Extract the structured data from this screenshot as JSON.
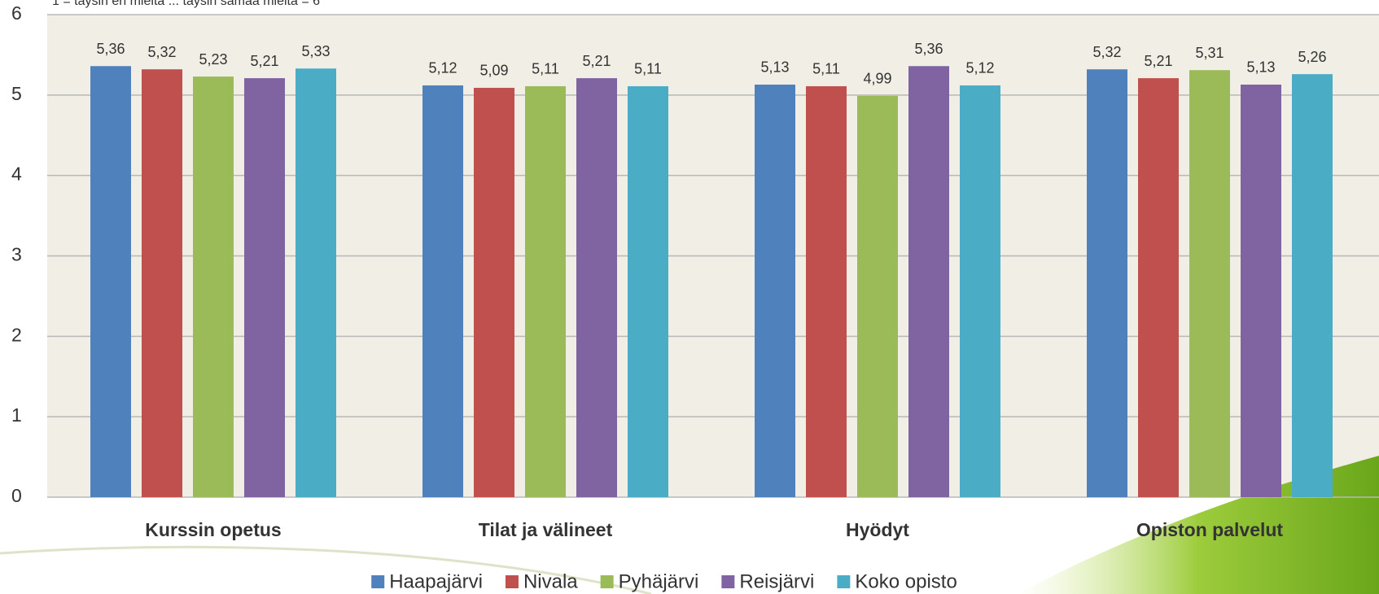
{
  "chart_data": {
    "type": "bar",
    "subtitle": "1 = täysin eri mieltä ... täysin samaa mieltä = 6",
    "categories": [
      "Kurssin opetus",
      "Tilat ja välineet",
      "Hyödyt",
      "Opiston palvelut"
    ],
    "series": [
      {
        "name": "Haapajärvi",
        "color": "#4f81bd",
        "values": [
          5.36,
          5.12,
          5.13,
          5.32
        ],
        "value_labels": [
          "5,36",
          "5,12",
          "5,13",
          "5,32"
        ]
      },
      {
        "name": "Nivala",
        "color": "#c0504d",
        "values": [
          5.32,
          5.09,
          5.11,
          5.21
        ],
        "value_labels": [
          "5,32",
          "5,09",
          "5,11",
          "5,21"
        ]
      },
      {
        "name": "Pyhäjärvi",
        "color": "#9bbb59",
        "values": [
          5.23,
          5.11,
          4.99,
          5.31
        ],
        "value_labels": [
          "5,23",
          "5,11",
          "4,99",
          "5,31"
        ]
      },
      {
        "name": "Reisjärvi",
        "color": "#8064a2",
        "values": [
          5.21,
          5.21,
          5.36,
          5.13
        ],
        "value_labels": [
          "5,21",
          "5,21",
          "5,36",
          "5,13"
        ]
      },
      {
        "name": "Koko opisto",
        "color": "#4bacc6",
        "values": [
          5.33,
          5.11,
          5.12,
          5.26
        ],
        "value_labels": [
          "5,33",
          "5,11",
          "5,12",
          "5,26"
        ]
      }
    ],
    "ylim": [
      0,
      6
    ],
    "yticks": [
      0,
      1,
      2,
      3,
      4,
      5,
      6
    ],
    "grid": true,
    "legend": "bottom"
  }
}
